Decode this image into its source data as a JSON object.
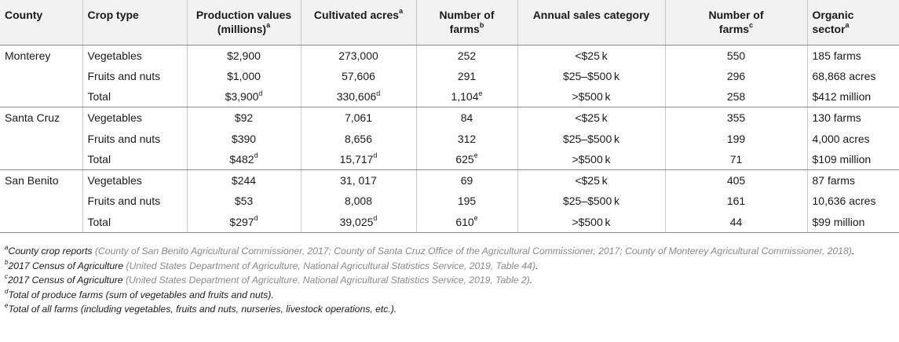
{
  "headers": [
    {
      "label": "County"
    },
    {
      "label": "Crop type"
    },
    {
      "label": "Production values (millions)",
      "line1": "Production values",
      "line2": "(millions)",
      "sup": "a"
    },
    {
      "label": "Cultivated acres",
      "line1": "Cultivated acres",
      "sup": "a"
    },
    {
      "label": "Number of farms",
      "line1": "Number of",
      "line2": "farms",
      "sup": "b"
    },
    {
      "label": "Annual sales category"
    },
    {
      "label": "Number of farms",
      "line1": "Number of",
      "line2": "farms",
      "sup": "c"
    },
    {
      "label": "Organic sector",
      "line1": "Organic",
      "line2": "sector",
      "sup": "a"
    }
  ],
  "rows": [
    {
      "county": "Monterey",
      "crop": "Vegetables",
      "prod": "$2,900",
      "prod_sup": "",
      "acres": "273,000",
      "acres_sup": "",
      "farms": "252",
      "farms_sup": "",
      "sales_cat": "<$25 k",
      "farms2": "550",
      "organic": "185 farms"
    },
    {
      "county": "",
      "crop": "Fruits and nuts",
      "prod": "$1,000",
      "prod_sup": "",
      "acres": "57,606",
      "acres_sup": "",
      "farms": "291",
      "farms_sup": "",
      "sales_cat": "$25–$500 k",
      "farms2": "296",
      "organic": "68,868 acres"
    },
    {
      "county": "",
      "crop": "Total",
      "prod": "$3,900",
      "prod_sup": "d",
      "acres": "330,606",
      "acres_sup": "d",
      "farms": "1,104",
      "farms_sup": "e",
      "sales_cat": ">$500 k",
      "farms2": "258",
      "organic": "$412 million"
    },
    {
      "county": "Santa Cruz",
      "crop": "Vegetables",
      "prod": "$92",
      "prod_sup": "",
      "acres": "7,061",
      "acres_sup": "",
      "farms": "84",
      "farms_sup": "",
      "sales_cat": "<$25 k",
      "farms2": "355",
      "organic": "130 farms"
    },
    {
      "county": "",
      "crop": "Fruits and nuts",
      "prod": "$390",
      "prod_sup": "",
      "acres": "8,656",
      "acres_sup": "",
      "farms": "312",
      "farms_sup": "",
      "sales_cat": "$25–$500 k",
      "farms2": "199",
      "organic": "4,000 acres"
    },
    {
      "county": "",
      "crop": "Total",
      "prod": "$482",
      "prod_sup": "d",
      "acres": "15,717",
      "acres_sup": "d",
      "farms": "625",
      "farms_sup": "e",
      "sales_cat": ">$500 k",
      "farms2": "71",
      "organic": "$109 million"
    },
    {
      "county": "San Benito",
      "crop": "Vegetables",
      "prod": "$244",
      "prod_sup": "",
      "acres": "31, 017",
      "acres_sup": "",
      "farms": "69",
      "farms_sup": "",
      "sales_cat": "<$25 k",
      "farms2": "405",
      "organic": "87 farms"
    },
    {
      "county": "",
      "crop": "Fruits and nuts",
      "prod": "$53",
      "prod_sup": "",
      "acres": "8,008",
      "acres_sup": "",
      "farms": "195",
      "farms_sup": "",
      "sales_cat": "$25–$500 k",
      "farms2": "161",
      "organic": "10,636 acres"
    },
    {
      "county": "",
      "crop": "Total",
      "prod": "$297",
      "prod_sup": "d",
      "acres": "39,025",
      "acres_sup": "d",
      "farms": "610",
      "farms_sup": "e",
      "sales_cat": ">$500 k",
      "farms2": "44",
      "organic": "$99 million"
    }
  ],
  "footnotes": [
    {
      "marker": "a",
      "lead": "County crop reports",
      "cite": " (County of San Benito Agricultural Commissioner, 2017; County of Santa Cruz Office of the Agricultural Commissioner, 2017; County of Monterey Agricultural Commissioner, 2018)",
      "tail": "."
    },
    {
      "marker": "b",
      "lead": "2017 Census of Agriculture",
      "cite": " (United States Department of Agriculture, National Agricultural Statistics Service, 2019, Table 44)",
      "tail": "."
    },
    {
      "marker": "c",
      "lead": "2017 Census of Agriculture",
      "cite": " (United States Department of Agriculture, National Agricultural Statistics Service, 2019, Table 2)",
      "tail": "."
    },
    {
      "marker": "d",
      "lead": "Total of produce farms (sum of vegetables and fruits and nuts).",
      "cite": "",
      "tail": ""
    },
    {
      "marker": "e",
      "lead": "Total of all farms (including vegetables, fruits and nuts, nurseries, livestock operations, etc.).",
      "cite": "",
      "tail": ""
    }
  ]
}
